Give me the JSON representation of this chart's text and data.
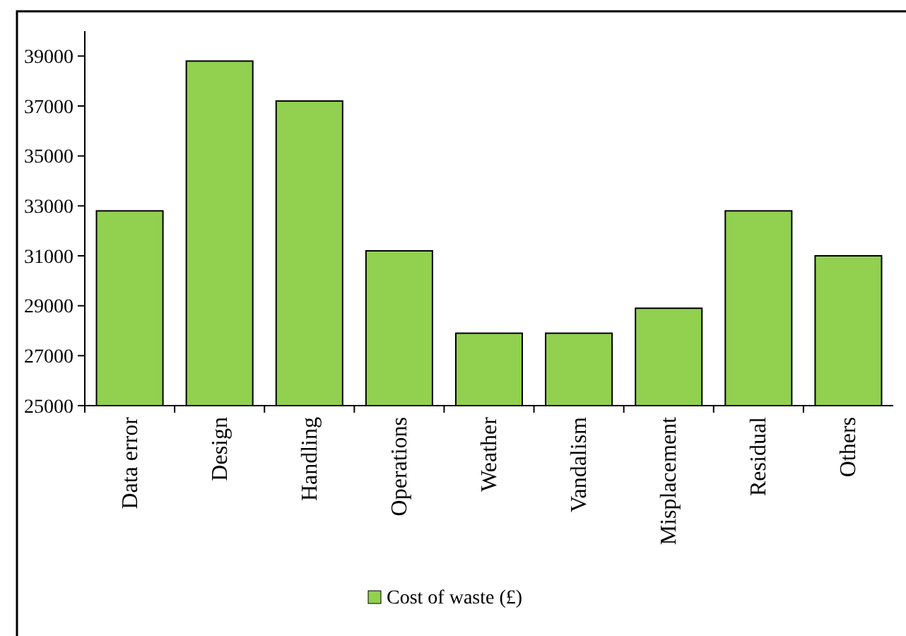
{
  "chart_data": {
    "type": "bar",
    "categories": [
      "Data error",
      "Design",
      "Handling",
      "Operations",
      "Weather",
      "Vandalism",
      "Misplacement",
      "Residual",
      "Others"
    ],
    "series": [
      {
        "name": "Cost of waste (£)",
        "color": "#92d050",
        "values": [
          32800,
          38800,
          37200,
          31200,
          27900,
          27900,
          28900,
          32800,
          31000
        ]
      }
    ],
    "ylim": [
      25000,
      40000
    ],
    "yticks": [
      25000,
      27000,
      29000,
      31000,
      33000,
      35000,
      37000,
      39000
    ],
    "grid": false,
    "legend": "bottom"
  }
}
